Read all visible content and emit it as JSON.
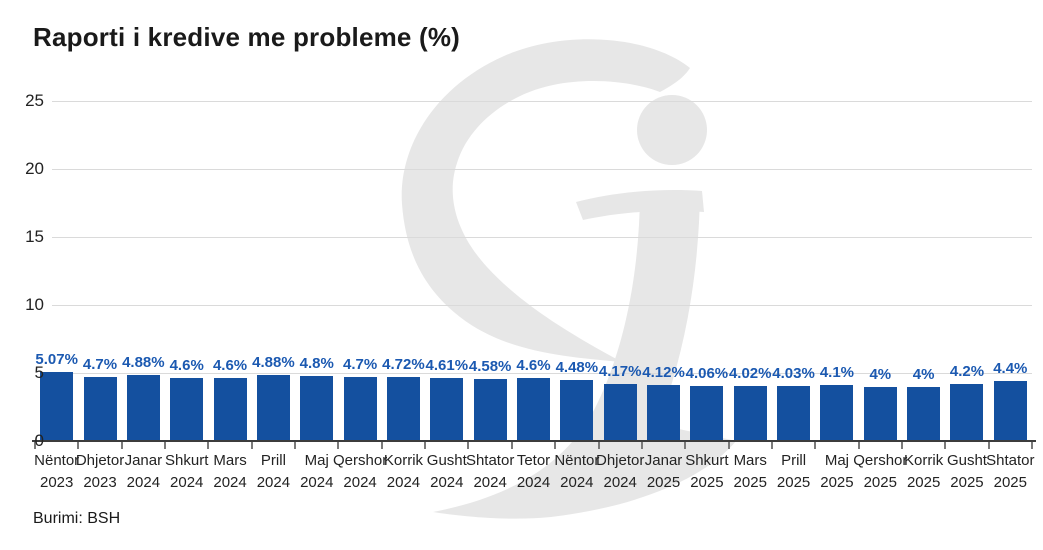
{
  "chart_data": {
    "type": "bar",
    "title": "Raporti i kredive me probleme (%)",
    "xlabel": "",
    "ylabel": "",
    "ylim": [
      0,
      25
    ],
    "yticks": [
      0,
      5,
      10,
      15,
      20,
      25
    ],
    "grid": true,
    "legend": "none",
    "categories": [
      {
        "month": "Nëntor",
        "year": "2023"
      },
      {
        "month": "Dhjetor",
        "year": "2023"
      },
      {
        "month": "Janar",
        "year": "2024"
      },
      {
        "month": "Shkurt",
        "year": "2024"
      },
      {
        "month": "Mars",
        "year": "2024"
      },
      {
        "month": "Prill",
        "year": "2024"
      },
      {
        "month": "Maj",
        "year": "2024"
      },
      {
        "month": "Qershor",
        "year": "2024"
      },
      {
        "month": "Korrik",
        "year": "2024"
      },
      {
        "month": "Gusht",
        "year": "2024"
      },
      {
        "month": "Shtator",
        "year": "2024"
      },
      {
        "month": "Tetor",
        "year": "2024"
      },
      {
        "month": "Nëntor",
        "year": "2024"
      },
      {
        "month": "Dhjetor",
        "year": "2024"
      },
      {
        "month": "Janar",
        "year": "2025"
      },
      {
        "month": "Shkurt",
        "year": "2025"
      },
      {
        "month": "Mars",
        "year": "2025"
      },
      {
        "month": "Prill",
        "year": "2025"
      },
      {
        "month": "Maj",
        "year": "2025"
      },
      {
        "month": "Qershor",
        "year": "2025"
      },
      {
        "month": "Korrik",
        "year": "2025"
      },
      {
        "month": "Gusht",
        "year": "2025"
      },
      {
        "month": "Shtator",
        "year": "2025"
      }
    ],
    "values": [
      5.07,
      4.7,
      4.88,
      4.6,
      4.6,
      4.88,
      4.8,
      4.7,
      4.72,
      4.61,
      4.58,
      4.6,
      4.48,
      4.17,
      4.12,
      4.06,
      4.02,
      4.03,
      4.1,
      4.0,
      4.0,
      4.2,
      4.4
    ],
    "value_labels": [
      "5.07%",
      "4.7%",
      "4.88%",
      "4.6%",
      "4.6%",
      "4.88%",
      "4.8%",
      "4.7%",
      "4.72%",
      "4.61%",
      "4.58%",
      "4.6%",
      "4.48%",
      "4.17%",
      "4.12%",
      "4.06%",
      "4.02%",
      "4.03%",
      "4.1%",
      "4%",
      "4%",
      "4.2%",
      "4.4%"
    ]
  },
  "source_note": "Burimi: BSH",
  "watermark": {
    "name": "si-logo-watermark",
    "color": "#e7e7e7"
  },
  "colors": {
    "bar": "#14509f",
    "value_label": "#1b59b1",
    "gridline": "#dadada",
    "axis": "#3c3c3c",
    "tick": "#7a7a7a",
    "text": "#232323",
    "title": "#1a1a1a"
  }
}
